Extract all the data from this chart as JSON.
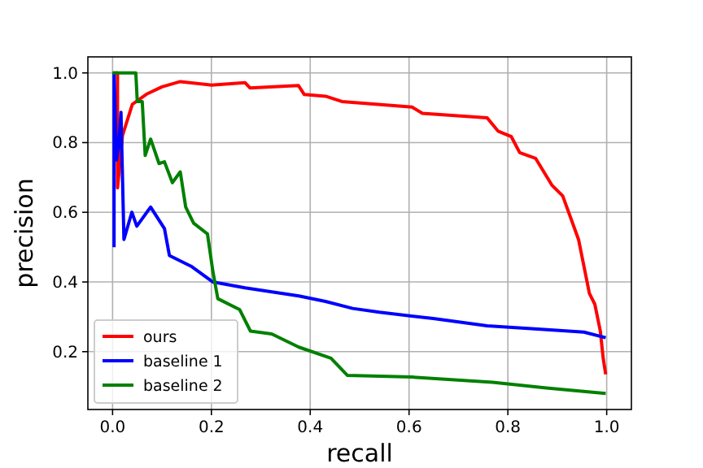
{
  "chart_data": {
    "type": "line",
    "xlabel": "recall",
    "ylabel": "precision",
    "xlim": [
      -0.05,
      1.05
    ],
    "ylim": [
      0.034,
      1.046
    ],
    "xticks": [
      {
        "value": 0,
        "label": "0.0"
      },
      0.2,
      0.4,
      0.6,
      0.8,
      {
        "value": 1,
        "label": "1.0"
      }
    ],
    "yticks": [
      0.2,
      0.4,
      0.6,
      0.8,
      {
        "value": 1,
        "label": "1.0"
      }
    ],
    "grid": true,
    "legend": "bottom left",
    "line_style": "solid",
    "marker": "none",
    "series": [
      {
        "name": "ours",
        "color": "#ff0000",
        "x": [
          0.005,
          0.01,
          0.01,
          0.02,
          0.04,
          0.07,
          0.1,
          0.137,
          0.2,
          0.268,
          0.278,
          0.376,
          0.388,
          0.431,
          0.464,
          0.606,
          0.627,
          0.758,
          0.78,
          0.807,
          0.824,
          0.856,
          0.889,
          0.911,
          0.943,
          0.965,
          0.976,
          0.987,
          0.993,
          0.998
        ],
        "values": [
          1.0,
          1.0,
          0.67,
          0.82,
          0.91,
          0.94,
          0.96,
          0.975,
          0.965,
          0.972,
          0.957,
          0.964,
          0.938,
          0.933,
          0.918,
          0.902,
          0.884,
          0.871,
          0.833,
          0.817,
          0.771,
          0.755,
          0.678,
          0.647,
          0.522,
          0.367,
          0.336,
          0.26,
          0.18,
          0.135
        ]
      },
      {
        "name": "baseline 1",
        "color": "#0000ff",
        "x": [
          0.003,
          0.003,
          0.008,
          0.012,
          0.017,
          0.023,
          0.039,
          0.049,
          0.077,
          0.105,
          0.115,
          0.159,
          0.203,
          0.268,
          0.377,
          0.431,
          0.486,
          0.54,
          0.649,
          0.758,
          0.867,
          0.954,
          0.998
        ],
        "values": [
          0.5,
          1.0,
          0.75,
          0.786,
          0.887,
          0.522,
          0.6,
          0.56,
          0.615,
          0.553,
          0.476,
          0.445,
          0.4,
          0.383,
          0.36,
          0.344,
          0.324,
          0.313,
          0.295,
          0.274,
          0.264,
          0.256,
          0.24
        ]
      },
      {
        "name": "baseline 2",
        "color": "#008000",
        "x": [
          0.0,
          0.047,
          0.05,
          0.06,
          0.066,
          0.077,
          0.094,
          0.105,
          0.121,
          0.137,
          0.148,
          0.164,
          0.192,
          0.203,
          0.213,
          0.257,
          0.279,
          0.322,
          0.377,
          0.442,
          0.475,
          0.606,
          0.769,
          0.878,
          0.998
        ],
        "values": [
          1.0,
          1.0,
          0.918,
          0.918,
          0.763,
          0.81,
          0.74,
          0.745,
          0.685,
          0.716,
          0.615,
          0.569,
          0.538,
          0.43,
          0.352,
          0.321,
          0.259,
          0.251,
          0.213,
          0.181,
          0.132,
          0.127,
          0.112,
          0.096,
          0.08
        ]
      }
    ]
  }
}
